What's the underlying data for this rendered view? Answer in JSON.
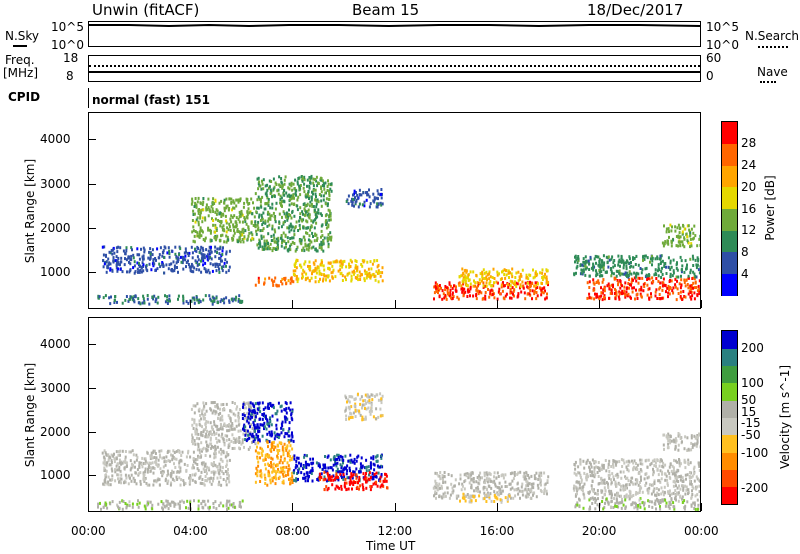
{
  "header": {
    "station": "Unwin (fitACF)",
    "beam": "Beam 15",
    "date": "18/Dec/2017"
  },
  "top_panels": {
    "nsky_label": "N.Sky",
    "nsky_tick_top": "10^5",
    "nsky_tick_bottom": "10^0",
    "nsearch_label": "N.Search",
    "freq_label_1": "Freq.",
    "freq_label_2": "[MHz]",
    "freq_tick_top": "18",
    "freq_tick_bottom": "8",
    "nave_tick_top": "60",
    "nave_tick_bottom": "0",
    "nave_label": "Nave",
    "cpid_label": "CPID",
    "cpid_value": "normal (fast) 151"
  },
  "colors": {
    "power_scale": [
      "#0000ff",
      "#2e4fa6",
      "#2e8b57",
      "#6faa3a",
      "#e5d800",
      "#ffa500",
      "#ff6600",
      "#ff0000"
    ],
    "velocity_scale": [
      "#ff0000",
      "#ff4a00",
      "#ff8c00",
      "#ffc020",
      "#c8c8c0",
      "#b0b0a8",
      "#78d020",
      "#3f9d3f",
      "#2a8080",
      "#0000d0"
    ]
  },
  "chart_data": [
    {
      "type": "heatmap",
      "title": "Power",
      "ylabel": "Slant Range [km]",
      "xlabel": "",
      "xlim": [
        "00:00",
        "00:00"
      ],
      "ylim": [
        180,
        4600
      ],
      "y_ticks": [
        1000,
        2000,
        3000,
        4000
      ],
      "colorbar": {
        "label": "Power [dB]",
        "ticks": [
          4,
          8,
          12,
          16,
          20,
          24,
          28
        ],
        "range": [
          0,
          32
        ]
      },
      "regions": [
        {
          "x": [
            0.3,
            6.0
          ],
          "y": [
            300,
            500
          ],
          "value": 8
        },
        {
          "x": [
            0.5,
            5.5
          ],
          "y": [
            1000,
            1600
          ],
          "value": 6
        },
        {
          "x": [
            4.0,
            6.5
          ],
          "y": [
            1700,
            2700
          ],
          "value": 14
        },
        {
          "x": [
            6.5,
            9.5
          ],
          "y": [
            1500,
            3200
          ],
          "value": 12
        },
        {
          "x": [
            8.0,
            11.5
          ],
          "y": [
            800,
            1300
          ],
          "value": 20
        },
        {
          "x": [
            6.5,
            8.0
          ],
          "y": [
            700,
            900
          ],
          "value": 26
        },
        {
          "x": [
            13.5,
            18.0
          ],
          "y": [
            400,
            800
          ],
          "value": 28
        },
        {
          "x": [
            14.5,
            18.0
          ],
          "y": [
            700,
            1100
          ],
          "value": 20
        },
        {
          "x": [
            19.5,
            24.0
          ],
          "y": [
            400,
            900
          ],
          "value": 28
        },
        {
          "x": [
            19.0,
            24.0
          ],
          "y": [
            900,
            1400
          ],
          "value": 10
        },
        {
          "x": [
            22.5,
            24.0
          ],
          "y": [
            1600,
            2100
          ],
          "value": 14
        },
        {
          "x": [
            10.0,
            11.5
          ],
          "y": [
            2500,
            2900
          ],
          "value": 6
        }
      ]
    },
    {
      "type": "heatmap",
      "title": "Velocity",
      "ylabel": "Slant Range [km]",
      "xlabel": "Time UT",
      "x_ticks": [
        "00:00",
        "04:00",
        "08:00",
        "12:00",
        "16:00",
        "20:00",
        "00:00"
      ],
      "ylim": [
        180,
        4600
      ],
      "y_ticks": [
        1000,
        2000,
        3000,
        4000
      ],
      "colorbar": {
        "label": "Velocity [m s^-1]",
        "ticks": [
          200,
          100,
          50,
          15,
          -15,
          -50,
          -100,
          -200
        ],
        "range": [
          -250,
          250
        ]
      },
      "regions": [
        {
          "x": [
            0.3,
            6.0
          ],
          "y": [
            250,
            450
          ],
          "value": 30
        },
        {
          "x": [
            0.5,
            5.5
          ],
          "y": [
            800,
            1600
          ],
          "value": 0
        },
        {
          "x": [
            4.0,
            6.5
          ],
          "y": [
            1600,
            2700
          ],
          "value": 0
        },
        {
          "x": [
            6.0,
            8.0
          ],
          "y": [
            1800,
            2700
          ],
          "value": 220
        },
        {
          "x": [
            6.5,
            8.0
          ],
          "y": [
            800,
            1800
          ],
          "value": -90
        },
        {
          "x": [
            8.0,
            11.5
          ],
          "y": [
            900,
            1500
          ],
          "value": 220
        },
        {
          "x": [
            9.0,
            11.7
          ],
          "y": [
            700,
            1100
          ],
          "value": -220
        },
        {
          "x": [
            13.5,
            18.0
          ],
          "y": [
            500,
            1100
          ],
          "value": 0
        },
        {
          "x": [
            14.5,
            16.5
          ],
          "y": [
            400,
            600
          ],
          "value": -60
        },
        {
          "x": [
            19.0,
            24.0
          ],
          "y": [
            500,
            1400
          ],
          "value": 0
        },
        {
          "x": [
            19.0,
            24.0
          ],
          "y": [
            250,
            500
          ],
          "value": 30
        },
        {
          "x": [
            22.5,
            24.0
          ],
          "y": [
            1600,
            2000
          ],
          "value": 0
        },
        {
          "x": [
            10.0,
            11.5
          ],
          "y": [
            2300,
            2900
          ],
          "value": -30
        }
      ]
    }
  ]
}
